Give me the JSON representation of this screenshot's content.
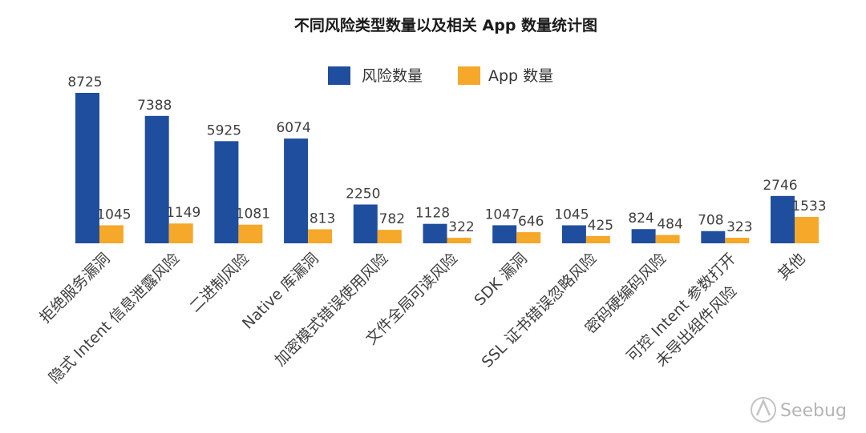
{
  "chart_data": {
    "type": "bar",
    "title": "不同风险类型数量以及相关 App 数量统计图",
    "categories": [
      [
        "拒绝服务漏洞"
      ],
      [
        "隐式 Intent 信息泄露风险"
      ],
      [
        "二进制风险"
      ],
      [
        "Native 库漏洞"
      ],
      [
        "加密模式错误使用风险"
      ],
      [
        "文件全局可读风险"
      ],
      [
        "SDK 漏洞"
      ],
      [
        "SSL 证书错误忽略风险"
      ],
      [
        "密码硬编码风险"
      ],
      [
        "可控 Intent 参数打开",
        "未导出组件风险"
      ],
      [
        "其他"
      ]
    ],
    "series": [
      {
        "name": "风险数量",
        "color": "#1f4e9e",
        "values": [
          8725,
          7388,
          5925,
          6074,
          2250,
          1128,
          1047,
          1045,
          824,
          708,
          2746
        ]
      },
      {
        "name": "App 数量",
        "color": "#f5a829",
        "values": [
          1045,
          1149,
          1081,
          813,
          782,
          322,
          646,
          425,
          484,
          323,
          1533
        ]
      }
    ],
    "ylim": [
      0,
      8725
    ],
    "grid": false,
    "legend_position": "top-center",
    "xlabel": "",
    "ylabel": ""
  },
  "watermark": {
    "text": "Seebug",
    "icon": "seebug-logo-icon"
  }
}
